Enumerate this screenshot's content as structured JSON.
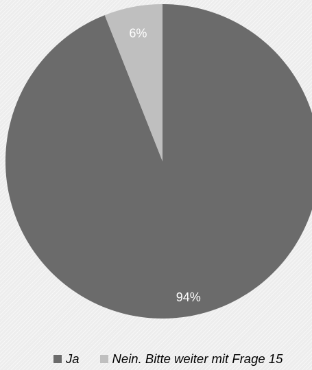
{
  "chart_data": {
    "type": "pie",
    "title": "",
    "start_angle_deg": 0,
    "direction": "clockwise",
    "slices": [
      {
        "name": "Ja",
        "value": 94,
        "label": "94%",
        "color": "#6b6b6b"
      },
      {
        "name": "Nein. Bitte weiter mit Frage 15",
        "value": 6,
        "label": "6%",
        "color": "#bfbfbf"
      }
    ],
    "legend": {
      "position": "bottom",
      "items": [
        "Ja",
        "Nein. Bitte weiter mit Frage 15"
      ]
    },
    "background": "#ededed"
  }
}
